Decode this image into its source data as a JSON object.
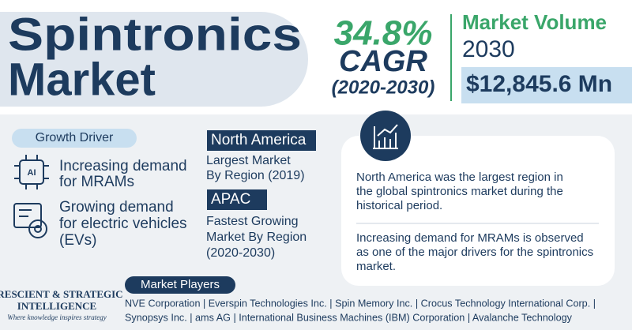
{
  "header": {
    "title_lines": [
      "Spintronics",
      "Market"
    ],
    "cagr": "34.8%",
    "cagr_label": "CAGR",
    "cagr_period": "(2020-2030)",
    "volume_label": "Market Volume",
    "volume_year": "2030",
    "volume_value": "$12,845.6 Mn"
  },
  "growth_driver": {
    "label": "Growth Driver",
    "items": [
      {
        "lines": [
          "Increasing demand",
          "for MRAMs"
        ]
      },
      {
        "lines": [
          "Growing demand",
          "for electric vehicles",
          "(EVs)"
        ]
      }
    ]
  },
  "regions": [
    {
      "name": "North America",
      "lines": [
        "Largest Market",
        "By Region (2019)"
      ]
    },
    {
      "name": "APAC",
      "lines": [
        "Fastest Growing",
        "Market By Region",
        "(2020-2030)"
      ]
    }
  ],
  "insights": [
    {
      "lines": [
        "North America was the largest region in",
        "the global spintronics market during the",
        "historical period."
      ]
    },
    {
      "lines": [
        "Increasing demand for MRAMs is observed",
        "as one of the major drivers for the spintronics",
        "market."
      ]
    }
  ],
  "market_players": {
    "label": "Market Players",
    "lines": [
      "NVE Corporation | Everspin Technologies Inc. | Spin Memory Inc. | Crocus Technology International Corp. |",
      "Synopsys Inc. | ams AG | International Business Machines (IBM) Corporation | Avalanche Technology"
    ]
  },
  "logo": {
    "lines": [
      "PRESCIENT & STRATEGIC",
      "INTELLIGENCE"
    ],
    "tagline": "Where knowledge inspires strategy"
  }
}
